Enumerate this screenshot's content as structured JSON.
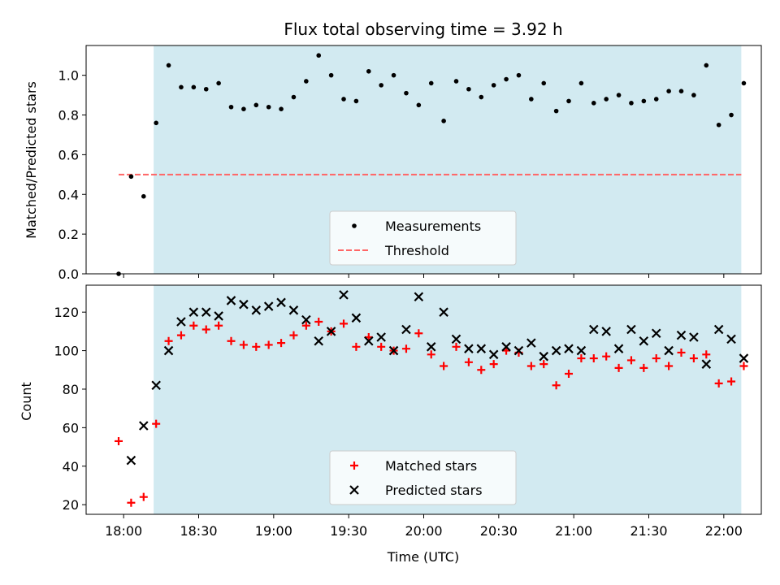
{
  "chart_data": [
    {
      "type": "scatter",
      "title": "Flux total observing time = 3.92 h",
      "xlabel": "",
      "ylabel": "Matched/Predicted stars",
      "ylim": [
        0,
        1.15
      ],
      "yticks": [
        "0.0",
        "0.2",
        "0.4",
        "0.6",
        "0.8",
        "1.0"
      ],
      "x_range_minutes": [
        1065,
        1335
      ],
      "shaded_region_minutes": [
        1092,
        1327
      ],
      "shade_color": "#add8e6",
      "threshold": 0.5,
      "threshold_x_minutes": [
        1078,
        1327
      ],
      "threshold_color": "#ff6666",
      "legend_position": "lower center",
      "legend": [
        "Measurements",
        "Threshold"
      ],
      "series": [
        {
          "name": "Measurements",
          "color": "#000000",
          "x": [
            "17:58",
            "18:03",
            "18:08",
            "18:13",
            "18:18",
            "18:23",
            "18:28",
            "18:33",
            "18:38",
            "18:43",
            "18:48",
            "18:53",
            "18:58",
            "19:03",
            "19:08",
            "19:13",
            "19:18",
            "19:23",
            "19:28",
            "19:33",
            "19:38",
            "19:43",
            "19:48",
            "19:53",
            "19:58",
            "20:03",
            "20:08",
            "20:13",
            "20:18",
            "20:23",
            "20:28",
            "20:33",
            "20:38",
            "20:43",
            "20:48",
            "20:53",
            "20:58",
            "21:03",
            "21:08",
            "21:13",
            "21:18",
            "21:23",
            "21:28",
            "21:33",
            "21:38",
            "21:43",
            "21:48",
            "21:53",
            "21:58",
            "22:03",
            "22:08"
          ],
          "y": [
            0.0,
            0.49,
            0.39,
            0.76,
            1.05,
            0.94,
            0.94,
            0.93,
            0.96,
            0.84,
            0.83,
            0.85,
            0.84,
            0.83,
            0.89,
            0.97,
            1.1,
            1.0,
            0.88,
            0.87,
            1.02,
            0.95,
            1.0,
            0.91,
            0.85,
            0.96,
            0.77,
            0.97,
            0.93,
            0.89,
            0.95,
            0.98,
            1.0,
            0.88,
            0.96,
            0.82,
            0.87,
            0.96,
            0.86,
            0.88,
            0.9,
            0.86,
            0.87,
            0.88,
            0.92,
            0.92,
            0.9,
            1.05,
            0.75,
            0.8,
            0.96
          ]
        }
      ]
    },
    {
      "type": "scatter",
      "xlabel": "Time (UTC)",
      "ylabel": "Count",
      "ylim": [
        15,
        134
      ],
      "yticks": [
        "20",
        "40",
        "60",
        "80",
        "100",
        "120"
      ],
      "xticks": [
        "18:00",
        "18:30",
        "19:00",
        "19:30",
        "20:00",
        "20:30",
        "21:00",
        "21:30",
        "22:00"
      ],
      "x_range_minutes": [
        1065,
        1335
      ],
      "shaded_region_minutes": [
        1092,
        1327
      ],
      "shade_color": "#add8e6",
      "legend_position": "lower center",
      "legend": [
        "Matched stars",
        "Predicted stars"
      ],
      "series": [
        {
          "name": "Matched stars",
          "marker": "+",
          "color": "#ff0000",
          "x": [
            "17:58",
            "18:03",
            "18:08",
            "18:13",
            "18:18",
            "18:23",
            "18:28",
            "18:33",
            "18:38",
            "18:43",
            "18:48",
            "18:53",
            "18:58",
            "19:03",
            "19:08",
            "19:13",
            "19:18",
            "19:23",
            "19:28",
            "19:33",
            "19:38",
            "19:43",
            "19:48",
            "19:53",
            "19:58",
            "20:03",
            "20:08",
            "20:13",
            "20:18",
            "20:23",
            "20:28",
            "20:33",
            "20:38",
            "20:43",
            "20:48",
            "20:53",
            "20:58",
            "21:03",
            "21:08",
            "21:13",
            "21:18",
            "21:23",
            "21:28",
            "21:33",
            "21:38",
            "21:43",
            "21:48",
            "21:53",
            "21:58",
            "22:03",
            "22:08"
          ],
          "y": [
            53,
            21,
            24,
            62,
            105,
            108,
            113,
            111,
            113,
            105,
            103,
            102,
            103,
            104,
            108,
            113,
            115,
            110,
            114,
            102,
            107,
            102,
            100,
            101,
            109,
            98,
            92,
            102,
            94,
            90,
            93,
            100,
            99,
            92,
            93,
            82,
            88,
            96,
            96,
            97,
            91,
            95,
            91,
            96,
            92,
            99,
            96,
            98,
            83,
            84,
            92
          ]
        },
        {
          "name": "Predicted stars",
          "marker": "x",
          "color": "#000000",
          "x": [
            "18:03",
            "18:08",
            "18:13",
            "18:18",
            "18:23",
            "18:28",
            "18:33",
            "18:38",
            "18:43",
            "18:48",
            "18:53",
            "18:58",
            "19:03",
            "19:08",
            "19:13",
            "19:18",
            "19:23",
            "19:28",
            "19:33",
            "19:38",
            "19:43",
            "19:48",
            "19:53",
            "19:58",
            "20:03",
            "20:08",
            "20:13",
            "20:18",
            "20:23",
            "20:28",
            "20:33",
            "20:38",
            "20:43",
            "20:48",
            "20:53",
            "20:58",
            "21:03",
            "21:08",
            "21:13",
            "21:18",
            "21:23",
            "21:28",
            "21:33",
            "21:38",
            "21:43",
            "21:48",
            "21:53",
            "21:58",
            "22:03",
            "22:08"
          ],
          "y": [
            43,
            61,
            82,
            100,
            115,
            120,
            120,
            118,
            126,
            124,
            121,
            123,
            125,
            121,
            116,
            105,
            110,
            129,
            117,
            105,
            107,
            100,
            111,
            128,
            102,
            120,
            106,
            101,
            101,
            98,
            102,
            100,
            104,
            97,
            100,
            101,
            100,
            111,
            110,
            101,
            111,
            105,
            109,
            100,
            108,
            107,
            93,
            111,
            106,
            96
          ]
        }
      ]
    }
  ]
}
